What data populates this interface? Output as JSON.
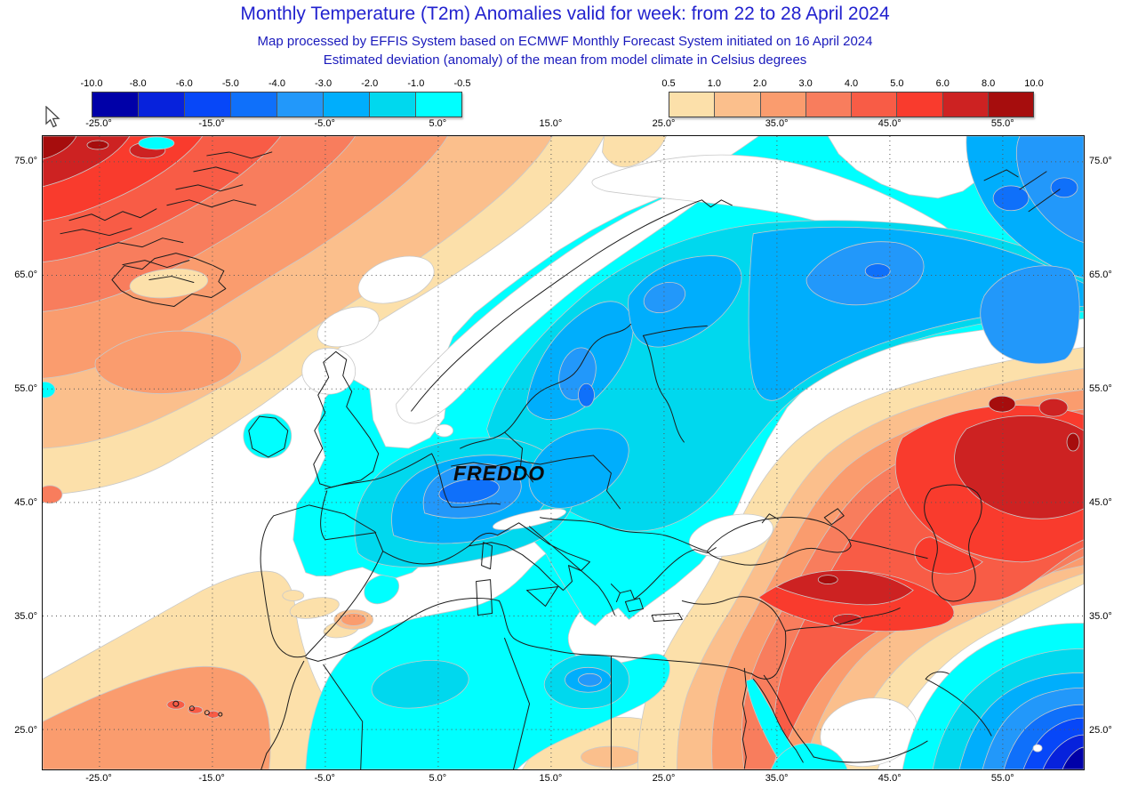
{
  "header": {
    "title": "Monthly Temperature (T2m) Anomalies valid for week: from 22 to 28 April 2024",
    "subtitle_line1": "Map processed by EFFIS System based on ECMWF Monthly Forecast System initiated on 16 April 2024",
    "subtitle_line2": "Estimated deviation (anomaly) of the mean from model climate in Celsius degrees"
  },
  "legends": {
    "negative": {
      "tick_labels": [
        "-10.0",
        "-8.0",
        "-6.0",
        "-5.0",
        "-4.0",
        "-3.0",
        "-2.0",
        "-1.0",
        "-0.5"
      ],
      "segment_colors": [
        "#0000a8",
        "#0722dc",
        "#0747f8",
        "#0f70fa",
        "#2298fa",
        "#00aefc",
        "#00d8ee",
        "#00ffff"
      ]
    },
    "positive": {
      "tick_labels": [
        "0.5",
        "1.0",
        "2.0",
        "3.0",
        "4.0",
        "5.0",
        "6.0",
        "8.0",
        "10.0"
      ],
      "segment_colors": [
        "#fce0aa",
        "#fbbf8c",
        "#fa9c6e",
        "#f87d5d",
        "#f85c46",
        "#f93b2d",
        "#cd2222",
        "#a60d0d"
      ]
    }
  },
  "map": {
    "annotation_label": "FREDDO",
    "top_axis_labels": [
      "-25.0°",
      "-15.0°",
      "-5.0°",
      "5.0°",
      "15.0°",
      "25.0°",
      "35.0°",
      "45.0°",
      "55.0°"
    ],
    "bottom_axis_labels": [
      "-25.0°",
      "-15.0°",
      "-5.0°",
      "5.0°",
      "15.0°",
      "25.0°",
      "35.0°",
      "45.0°",
      "55.0°"
    ],
    "left_axis_labels": [
      "75.0°",
      "65.0°",
      "55.0°",
      "45.0°",
      "35.0°",
      "25.0°"
    ],
    "right_axis_labels": [
      "75.0°",
      "65.0°",
      "55.0°",
      "45.0°",
      "35.0°",
      "25.0°"
    ]
  },
  "colors": {
    "title_text": "#2222cf",
    "subtitle_text": "#1a1abc",
    "axis_text": "#000000"
  }
}
